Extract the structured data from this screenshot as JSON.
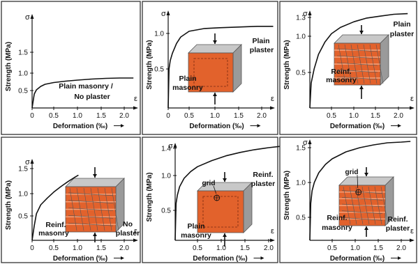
{
  "chart_data": [
    {
      "type": "line",
      "title": "",
      "xlabel": "Deformation (‰)",
      "ylabel": "Strength (MPa)",
      "x_symbol": "ε",
      "y_symbol": "σ",
      "xlim": [
        0,
        2.3
      ],
      "ylim": [
        0,
        1.8
      ],
      "xticks": [
        "0",
        "0.5",
        "1.0",
        "1.5",
        "2.0"
      ],
      "yticks": [
        "0.5",
        "1.0",
        "1.5"
      ],
      "series": [
        {
          "x": [
            0,
            0.05,
            0.1,
            0.2,
            0.3,
            0.5,
            0.75,
            1.0,
            1.3,
            1.6,
            1.9,
            2.2
          ],
          "y": [
            0,
            0.4,
            0.52,
            0.62,
            0.68,
            0.73,
            0.77,
            0.8,
            0.83,
            0.85,
            0.86,
            0.86
          ]
        }
      ],
      "annotations": [
        "Plain masonry /",
        "No plaster"
      ],
      "specimen": "none"
    },
    {
      "type": "line",
      "title": "",
      "xlabel": "Deformation (‰)",
      "ylabel": "Strength (MPa)",
      "x_symbol": "ε",
      "y_symbol": "σ",
      "xlim": [
        0,
        2.3
      ],
      "ylim": [
        0,
        1.25
      ],
      "xticks": [
        "0",
        "0.5",
        "1.0",
        "1.5",
        "2.0"
      ],
      "yticks": [
        "0.5",
        "1.0"
      ],
      "series": [
        {
          "x": [
            0,
            0.02,
            0.05,
            0.1,
            0.2,
            0.3,
            0.5,
            0.8,
            1.1,
            1.5,
            1.9,
            2.25
          ],
          "y": [
            0,
            0.5,
            0.62,
            0.72,
            0.86,
            0.95,
            1.03,
            1.07,
            1.08,
            1.09,
            1.1,
            1.1
          ]
        }
      ],
      "annotations": [
        "Plain",
        "plaster",
        "Plain",
        "masonry"
      ],
      "specimen": "plain"
    },
    {
      "type": "line",
      "title": "",
      "xlabel": "Deformation (‰)",
      "ylabel": "Strength (MPa)",
      "x_symbol": "ε",
      "y_symbol": "σ",
      "xlim": [
        0,
        2.3
      ],
      "ylim": [
        0,
        1.4
      ],
      "xticks": [
        "0.5",
        "1.0",
        "1.5",
        "2.0"
      ],
      "yticks": [
        "0.5",
        "1.0",
        "1.3"
      ],
      "series": [
        {
          "x": [
            0,
            0.03,
            0.1,
            0.2,
            0.35,
            0.5,
            0.7,
            1.0,
            1.3,
            1.6,
            1.9,
            2.2
          ],
          "y": [
            0,
            0.35,
            0.55,
            0.75,
            0.92,
            1.04,
            1.14,
            1.23,
            1.29,
            1.32,
            1.35,
            1.36
          ]
        }
      ],
      "annotations": [
        "Plain",
        "plaster",
        "Reinf.",
        "masonry"
      ],
      "specimen": "reinforced"
    },
    {
      "type": "line",
      "title": "",
      "xlabel": "Deformation (‰)",
      "ylabel": "Strength (MPa)",
      "x_symbol": "ε",
      "y_symbol": "σ",
      "xlim": [
        0,
        2.3
      ],
      "ylim": [
        0,
        1.8
      ],
      "xticks": [
        "0",
        "0.5",
        "1.0",
        "1.5",
        "2.0"
      ],
      "yticks": [
        "0.5",
        "1.0",
        "1.5"
      ],
      "series": [
        {
          "x": [
            0,
            0.05,
            0.1,
            0.2,
            0.35,
            0.5,
            0.65,
            0.8,
            0.95,
            1.02
          ],
          "y": [
            0,
            0.3,
            0.55,
            0.75,
            0.9,
            1.03,
            1.14,
            1.24,
            1.33,
            1.37
          ]
        }
      ],
      "annotations": [
        "Reinf.",
        "masonry",
        "No",
        "plaster"
      ],
      "specimen": "reinforced"
    },
    {
      "type": "line",
      "title": "",
      "xlabel": "Deformation (‰)",
      "ylabel": "Strength (MPa)",
      "x_symbol": "ε",
      "y_symbol": "σ",
      "xlim": [
        0,
        2.3
      ],
      "ylim": [
        0,
        1.5
      ],
      "xticks": [
        "0.5",
        "1.0",
        "1.5",
        "2.0"
      ],
      "yticks": [
        "0.5",
        "1.0",
        "1.4"
      ],
      "series": [
        {
          "x": [
            0,
            0.02,
            0.05,
            0.1,
            0.2,
            0.35,
            0.5,
            0.8,
            1.1,
            1.4,
            1.7,
            2.0,
            2.25
          ],
          "y": [
            0,
            0.6,
            0.72,
            0.84,
            0.96,
            1.06,
            1.13,
            1.22,
            1.29,
            1.34,
            1.38,
            1.41,
            1.43
          ]
        }
      ],
      "annotations": [
        "grid",
        "Reinf.",
        "plaster",
        "Plain",
        "masonry"
      ],
      "specimen": "plain-grid"
    },
    {
      "type": "line",
      "title": "",
      "xlabel": "Deformation (‰)",
      "ylabel": "Strength (MPa)",
      "x_symbol": "ε",
      "y_symbol": "σ",
      "xlim": [
        0,
        2.3
      ],
      "ylim": [
        0,
        1.65
      ],
      "xticks": [
        "0.5",
        "1.0",
        "1.5",
        "2.0"
      ],
      "yticks": [
        "0.5",
        "1.0",
        "1.5"
      ],
      "series": [
        {
          "x": [
            0,
            0.02,
            0.05,
            0.1,
            0.2,
            0.35,
            0.5,
            0.8,
            1.1,
            1.4,
            1.7,
            2.0,
            2.2
          ],
          "y": [
            0,
            0.7,
            0.88,
            1.0,
            1.14,
            1.26,
            1.34,
            1.44,
            1.5,
            1.54,
            1.57,
            1.58,
            1.59
          ]
        }
      ],
      "annotations": [
        "grid",
        "Reinf.",
        "masonry",
        "Reinf.",
        "plaster"
      ],
      "specimen": "reinforced-grid"
    }
  ],
  "colors": {
    "block_front": "#e2622c",
    "block_top": "#c8c8c8",
    "block_side": "#9a9a9a",
    "curve": "#111111",
    "frame": "#333333"
  }
}
